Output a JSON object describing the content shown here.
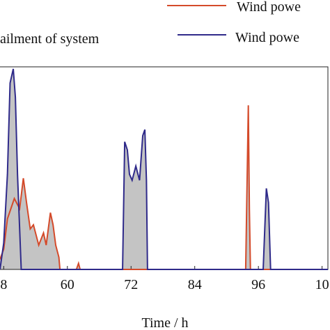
{
  "chart_data": {
    "type": "line",
    "xlabel": "Time / h",
    "fill_label": "ailment of system",
    "xlim": [
      47.3,
      109.1
    ],
    "ylim": [
      0,
      1
    ],
    "xticks": [
      {
        "value": 48,
        "label": "8"
      },
      60,
      72,
      84,
      96,
      {
        "value": 108,
        "label": "10"
      }
    ],
    "fill_color": "#c4c4c4",
    "series": [
      {
        "name": "Wind powe",
        "color": "#d44a2a",
        "x": [
          47.3,
          48,
          48.7,
          50,
          51,
          51.7,
          52.3,
          53,
          53.6,
          54.6,
          55.5,
          56,
          56.8,
          57.3,
          57.8,
          58.4,
          58.6,
          61.7,
          62.1,
          62.4,
          93.6,
          94.1,
          94.3,
          94.5,
          109.1
        ],
        "values": [
          0.05,
          0.1,
          0.25,
          0.35,
          0.3,
          0.45,
          0.33,
          0.2,
          0.22,
          0.12,
          0.18,
          0.12,
          0.28,
          0.22,
          0.12,
          0.06,
          0,
          0,
          0.03,
          0,
          0,
          0.81,
          0.3,
          0,
          0
        ]
      },
      {
        "name": "Wind powe",
        "color": "#2f2a8a",
        "x": [
          47.3,
          48,
          48.7,
          49.2,
          49.8,
          50.2,
          50.6,
          51.3,
          70.4,
          70.8,
          71.3,
          71.7,
          72.2,
          72.9,
          73.6,
          74.2,
          74.6,
          74.9,
          75.1,
          96.9,
          97.5,
          97.9,
          98.3,
          109.1
        ],
        "values": [
          0,
          0.13,
          0.47,
          0.92,
          0.99,
          0.85,
          0.47,
          0,
          0,
          0.63,
          0.59,
          0.47,
          0.44,
          0.51,
          0.44,
          0.66,
          0.69,
          0.44,
          0,
          0,
          0.4,
          0.33,
          0,
          0
        ]
      }
    ]
  }
}
